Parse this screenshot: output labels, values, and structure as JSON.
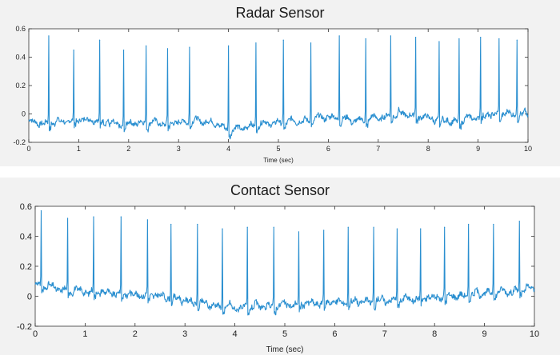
{
  "chart_data": [
    {
      "type": "line",
      "title": "Radar Sensor",
      "xlabel": "Time (sec)",
      "ylabel": "",
      "xlim": [
        0,
        10
      ],
      "ylim": [
        -0.2,
        0.6
      ],
      "xticks": [
        0,
        1,
        2,
        3,
        4,
        5,
        6,
        7,
        8,
        9,
        10
      ],
      "yticks": [
        -0.2,
        0,
        0.2,
        0.4,
        0.6
      ],
      "ytick_labels": [
        "-0.2",
        "0",
        "0.2",
        "0.4",
        "0.6"
      ],
      "grid": false,
      "line_color": "#2a8fd0",
      "series": [
        {
          "beats": [
            {
              "t": 0.4,
              "peak": 0.55
            },
            {
              "t": 0.9,
              "peak": 0.45
            },
            {
              "t": 1.42,
              "peak": 0.52
            },
            {
              "t": 1.9,
              "peak": 0.45
            },
            {
              "t": 2.35,
              "peak": 0.48
            },
            {
              "t": 2.78,
              "peak": 0.46
            },
            {
              "t": 3.22,
              "peak": 0.47
            },
            {
              "t": 4.0,
              "peak": 0.48
            },
            {
              "t": 4.55,
              "peak": 0.5
            },
            {
              "t": 5.1,
              "peak": 0.52
            },
            {
              "t": 5.65,
              "peak": 0.5
            },
            {
              "t": 6.22,
              "peak": 0.55
            },
            {
              "t": 6.75,
              "peak": 0.53
            },
            {
              "t": 7.25,
              "peak": 0.55
            },
            {
              "t": 7.75,
              "peak": 0.54
            },
            {
              "t": 8.22,
              "peak": 0.51
            },
            {
              "t": 8.62,
              "peak": 0.53
            },
            {
              "t": 9.05,
              "peak": 0.54
            },
            {
              "t": 9.42,
              "peak": 0.53
            },
            {
              "t": 9.78,
              "peak": 0.52
            }
          ],
          "baseline": [
            [
              0,
              -0.05
            ],
            [
              0.3,
              -0.07
            ],
            [
              0.8,
              -0.05
            ],
            [
              1.3,
              -0.04
            ],
            [
              1.8,
              -0.08
            ],
            [
              2.3,
              -0.06
            ],
            [
              2.8,
              -0.07
            ],
            [
              3.3,
              -0.05
            ],
            [
              3.7,
              -0.06
            ],
            [
              4.05,
              -0.12
            ],
            [
              4.5,
              -0.08
            ],
            [
              5.0,
              -0.06
            ],
            [
              5.5,
              -0.05
            ],
            [
              6.0,
              -0.02
            ],
            [
              6.5,
              -0.05
            ],
            [
              7.0,
              -0.03
            ],
            [
              7.5,
              0.0
            ],
            [
              8.0,
              -0.03
            ],
            [
              8.5,
              -0.06
            ],
            [
              9.0,
              -0.02
            ],
            [
              9.5,
              0.0
            ],
            [
              10,
              -0.01
            ]
          ]
        }
      ]
    },
    {
      "type": "line",
      "title": "Contact Sensor",
      "xlabel": "Time (sec)",
      "ylabel": "",
      "xlim": [
        0,
        10
      ],
      "ylim": [
        -0.2,
        0.6
      ],
      "xticks": [
        0,
        1,
        2,
        3,
        4,
        5,
        6,
        7,
        8,
        9,
        10
      ],
      "yticks": [
        -0.2,
        0,
        0.2,
        0.4,
        0.6
      ],
      "ytick_labels": [
        "-0.2",
        "0",
        "0.2",
        "0.4",
        "0.6"
      ],
      "grid": false,
      "line_color": "#2a8fd0",
      "series": [
        {
          "beats": [
            {
              "t": 0.12,
              "peak": 0.57
            },
            {
              "t": 0.65,
              "peak": 0.52
            },
            {
              "t": 1.17,
              "peak": 0.53
            },
            {
              "t": 1.72,
              "peak": 0.53
            },
            {
              "t": 2.25,
              "peak": 0.51
            },
            {
              "t": 2.72,
              "peak": 0.48
            },
            {
              "t": 3.25,
              "peak": 0.48
            },
            {
              "t": 3.75,
              "peak": 0.45
            },
            {
              "t": 4.25,
              "peak": 0.46
            },
            {
              "t": 4.78,
              "peak": 0.46
            },
            {
              "t": 5.28,
              "peak": 0.43
            },
            {
              "t": 5.78,
              "peak": 0.44
            },
            {
              "t": 6.27,
              "peak": 0.46
            },
            {
              "t": 6.78,
              "peak": 0.46
            },
            {
              "t": 7.25,
              "peak": 0.45
            },
            {
              "t": 7.72,
              "peak": 0.45
            },
            {
              "t": 8.2,
              "peak": 0.46
            },
            {
              "t": 8.68,
              "peak": 0.48
            },
            {
              "t": 9.18,
              "peak": 0.48
            },
            {
              "t": 9.7,
              "peak": 0.5
            }
          ],
          "baseline": [
            [
              0,
              0.08
            ],
            [
              0.3,
              0.06
            ],
            [
              0.6,
              0.04
            ],
            [
              1.0,
              0.03
            ],
            [
              1.5,
              0.02
            ],
            [
              2.0,
              0.01
            ],
            [
              2.5,
              0.0
            ],
            [
              3.0,
              -0.03
            ],
            [
              3.5,
              -0.06
            ],
            [
              4.0,
              -0.08
            ],
            [
              4.5,
              -0.07
            ],
            [
              5.0,
              -0.06
            ],
            [
              5.5,
              -0.05
            ],
            [
              6.0,
              -0.04
            ],
            [
              6.5,
              -0.04
            ],
            [
              7.0,
              -0.03
            ],
            [
              7.5,
              -0.02
            ],
            [
              8.0,
              -0.01
            ],
            [
              8.5,
              0.0
            ],
            [
              9.0,
              0.02
            ],
            [
              9.5,
              0.03
            ],
            [
              10,
              0.05
            ]
          ]
        }
      ]
    }
  ]
}
